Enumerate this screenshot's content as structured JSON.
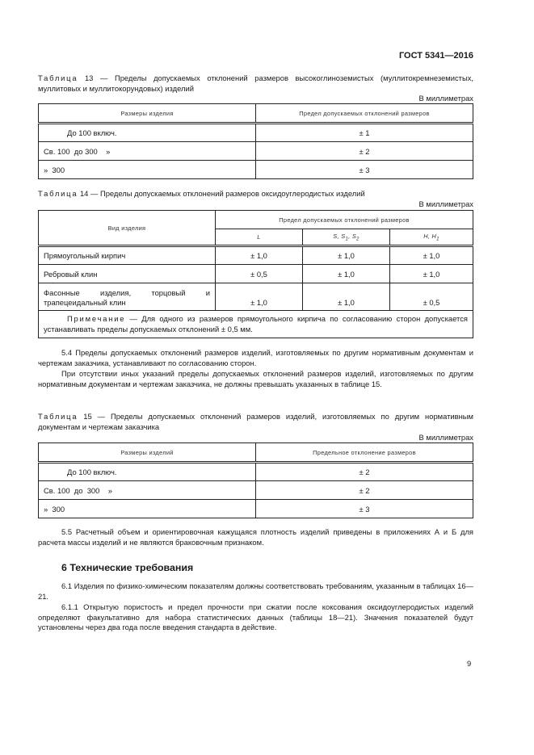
{
  "header": {
    "doc_code": "ГОСТ 5341—2016"
  },
  "table13": {
    "label": "Таблица",
    "caption": " 13 — Пределы допускаемых отклонений размеров высокоглиноземистых (муллитокремнеземистых, муллитовых и муллитокорундовых) изделий",
    "units": "В миллиметрах",
    "columns": [
      "Размеры изделия",
      "Предел допускаемых отклонений размеров"
    ],
    "rows": [
      [
        "До 100 включ.",
        "± 1"
      ],
      [
        "Св. 100  до 300    »",
        "± 2"
      ],
      [
        "»  300",
        "± 3"
      ]
    ]
  },
  "table14": {
    "label": "Таблица",
    "caption": " 14 — Пределы допускаемых отклонений размеров оксидоуглеродистых изделий",
    "units": "В миллиметрах",
    "col_item": "Вид изделия",
    "col_group": "Предел допускаемых отклонений размеров",
    "sub_columns": {
      "l": "L",
      "s": "S, S",
      "s_sub1": "1",
      "s_sep": ", S",
      "s_sub2": "2",
      "h": "H, H",
      "h_sub": "1"
    },
    "rows": [
      [
        "Прямоугольный кирпич",
        "± 1,0",
        "± 1,0",
        "± 1,0"
      ],
      [
        "Ребровый клин",
        "± 0,5",
        "± 1,0",
        "± 1,0"
      ],
      [
        "Фасонные изделия, торцовый и трапецеидальный клин",
        "± 1,0",
        "± 1,0",
        "± 0,5"
      ]
    ],
    "note_label": "Примечание",
    "note_text": " — Для одного из размеров прямоугольного кирпича по согласованию сторон допускается устанавливать пределы допускаемых отклонений ± 0,5 мм."
  },
  "para_5_4": "5.4 Пределы допускаемых отклонений размеров изделий, изготовляемых по другим нормативным документам и чертежам заказчика, устанавливают по согласованию сторон.",
  "para_5_4b": "При отсутствии иных указаний пределы допускаемых отклонений размеров изделий, изготовляемых по другим нормативным документам и чертежам заказчика, не должны превышать указанных в таблице 15.",
  "table15": {
    "label": "Таблица",
    "caption": " 15 — Пределы допускаемых отклонений размеров изделий, изготовляемых по другим нормативным документам и чертежам заказчика",
    "units": "В миллиметрах",
    "columns": [
      "Размеры изделий",
      "Предельное отклонение размеров"
    ],
    "rows": [
      [
        "До 100 включ.",
        "± 2"
      ],
      [
        "Св. 100  до  300    »",
        "± 2"
      ],
      [
        "»  300",
        "± 3"
      ]
    ]
  },
  "para_5_5": "5.5 Расчетный объем и ориентировочная кажущаяся плотность изделий приведены в приложениях А и Б для расчета массы изделий и не являются браковочным признаком.",
  "section6_title": "6 Технические требования",
  "para_6_1": "6.1 Изделия по физико-химическим показателям должны соответствовать требованиям, указанным в таблицах 16—21.",
  "para_6_1_1": "6.1.1 Открытую пористость и предел прочности при сжатии после коксования оксидоуглеродистых изделий определяют факультативно для набора статистических данных (таблицы 18—21). Значения показателей будут установлены через два года после введения стандарта в действие.",
  "page_number": "9"
}
